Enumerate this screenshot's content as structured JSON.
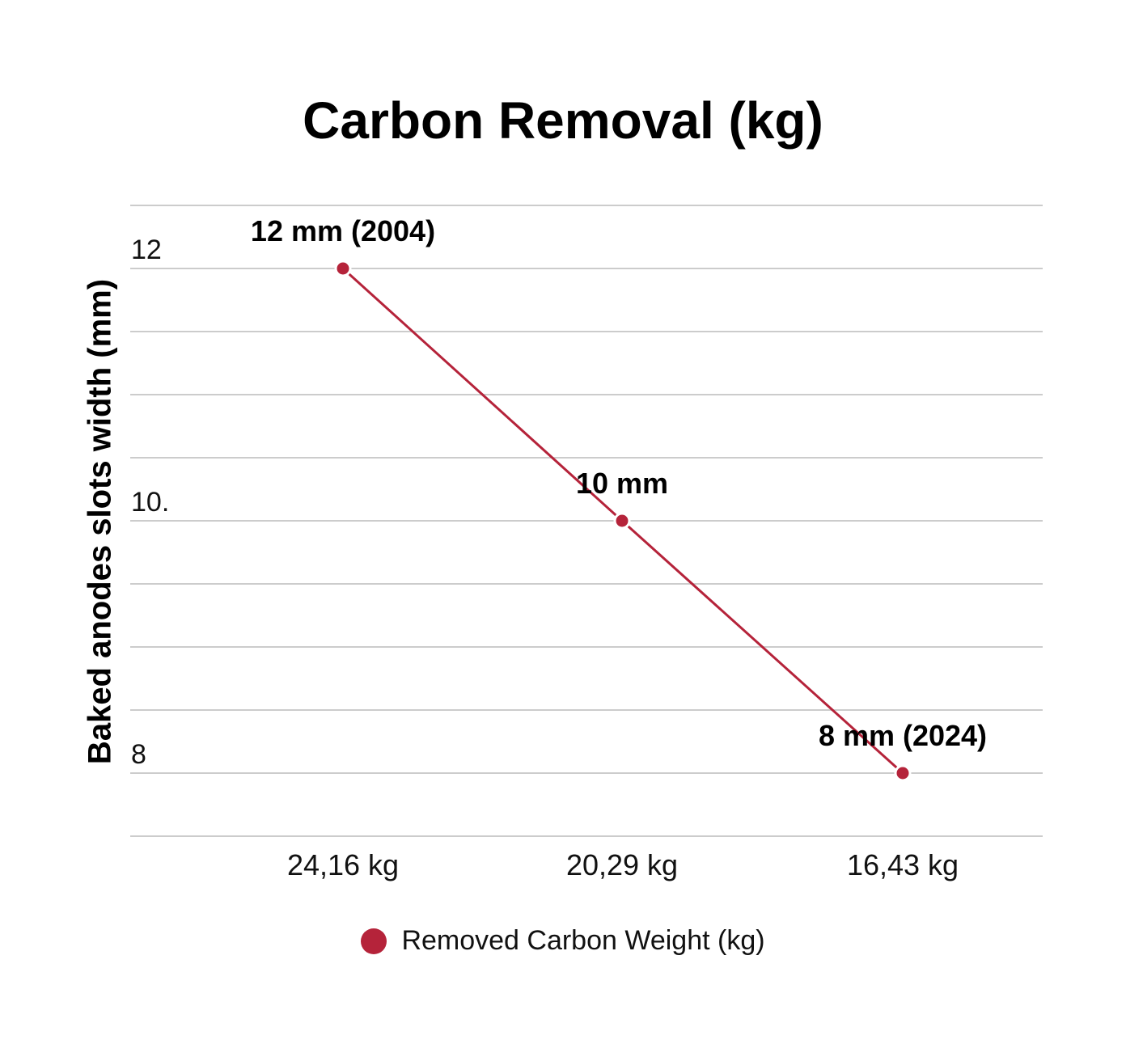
{
  "chart_data": {
    "type": "line",
    "title": "Carbon Removal (kg)",
    "xlabel": "",
    "ylabel": "Baked anodes slots width (mm)",
    "categories": [
      "24,16 kg",
      "20,29 kg",
      "16,43 kg"
    ],
    "series": [
      {
        "name": "Removed Carbon Weight (kg)",
        "values": [
          12,
          10,
          8
        ],
        "data_labels": [
          "12 mm (2004)",
          "10 mm",
          "8 mm (2024)"
        ]
      }
    ],
    "y_ticks": [
      "12",
      "10.",
      "8"
    ],
    "y_tick_values": [
      12,
      10,
      8
    ],
    "ylim": [
      7.5,
      12.5
    ],
    "grid": true,
    "legend_position": "bottom",
    "colors": {
      "series": "#b5233a",
      "grid": "#cccccc"
    }
  }
}
